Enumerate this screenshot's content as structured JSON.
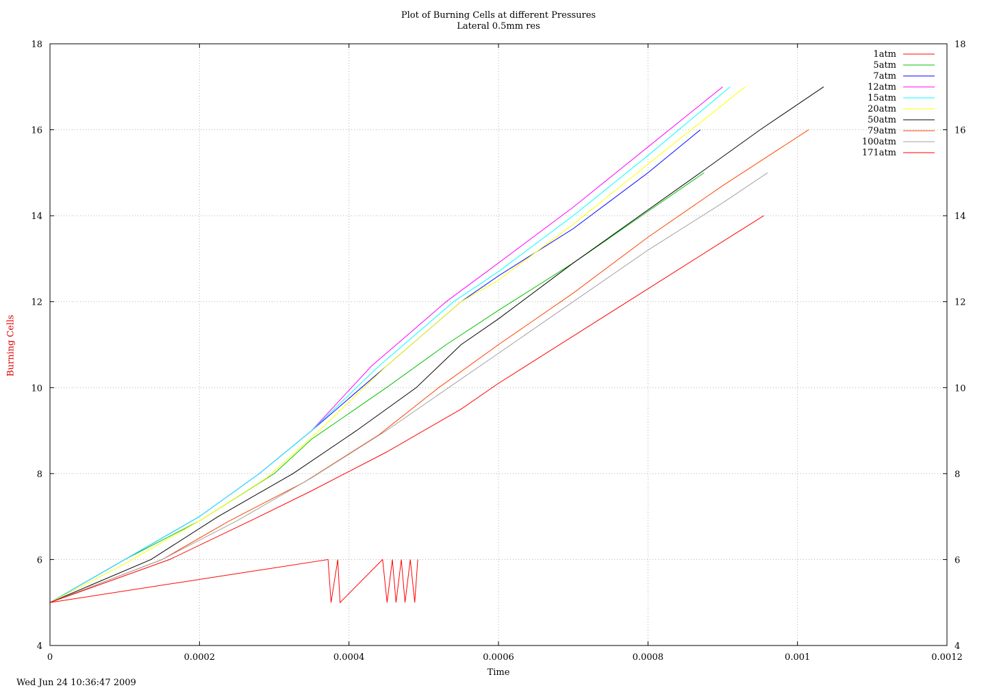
{
  "chart_data": {
    "type": "line",
    "title": "Plot of Burning Cells at different Pressures",
    "subtitle": "Lateral 0.5mm res",
    "xlabel": "Time",
    "ylabel": "Burning Cells",
    "xlim": [
      0,
      0.0012
    ],
    "ylim": [
      4,
      18
    ],
    "x_ticks": [
      "0",
      "0.0002",
      "0.0004",
      "0.0006",
      "0.0008",
      "0.001",
      "0.0012"
    ],
    "y_ticks": [
      "4",
      "6",
      "8",
      "10",
      "12",
      "14",
      "16",
      "18"
    ],
    "grid": true,
    "legend_position": "top-right",
    "series": [
      {
        "name": "1atm",
        "color": "#ff0000",
        "x": [
          0,
          0.000372,
          0.000376,
          0.000385,
          0.000388,
          0.000445,
          0.000451,
          0.000458,
          0.000463,
          0.00047,
          0.000475,
          0.000482,
          0.000488,
          0.000492
        ],
        "y": [
          5,
          6,
          5,
          6,
          5,
          6,
          5,
          6,
          5,
          6,
          5,
          6,
          5,
          6
        ]
      },
      {
        "name": "5atm",
        "color": "#00c000",
        "x": [
          0,
          0.0001,
          0.0002,
          0.0003,
          0.00035,
          0.00045,
          0.00053,
          0.0006,
          0.0007,
          0.0008,
          0.000875
        ],
        "y": [
          5,
          6,
          6.9,
          8,
          8.8,
          10,
          11,
          11.8,
          12.9,
          14.1,
          15
        ]
      },
      {
        "name": "7atm",
        "color": "#0000ff",
        "x": [
          0,
          0.0001,
          0.0002,
          0.00028,
          0.00035,
          0.00045,
          0.00055,
          0.0006,
          0.0007,
          0.0008,
          0.00087
        ],
        "y": [
          5,
          6,
          7,
          8,
          9,
          10.5,
          12,
          12.6,
          13.7,
          15,
          16
        ]
      },
      {
        "name": "12atm",
        "color": "#ff00ff",
        "x": [
          0,
          0.0001,
          0.0002,
          0.00028,
          0.00035,
          0.00043,
          0.00053,
          0.0006,
          0.0007,
          0.0008,
          0.0009
        ],
        "y": [
          5,
          6,
          7,
          8,
          9,
          10.5,
          12,
          12.9,
          14.2,
          15.6,
          17
        ]
      },
      {
        "name": "15atm",
        "color": "#00ffff",
        "x": [
          0,
          0.0001,
          0.0002,
          0.00028,
          0.00035,
          0.00044,
          0.00054,
          0.0006,
          0.0007,
          0.0008,
          0.00091
        ],
        "y": [
          5,
          6,
          7,
          8,
          9,
          10.5,
          12,
          12.7,
          14,
          15.4,
          17
        ]
      },
      {
        "name": "20atm",
        "color": "#ffff00",
        "x": [
          0,
          0.0001,
          0.0002,
          0.00029,
          0.00036,
          0.00045,
          0.00055,
          0.0006,
          0.0007,
          0.0008,
          0.00093
        ],
        "y": [
          5,
          5.9,
          6.9,
          7.9,
          9,
          10.5,
          12,
          12.5,
          13.8,
          15.2,
          17
        ]
      },
      {
        "name": "50atm",
        "color": "#000000",
        "x": [
          0,
          0.000135,
          0.000225,
          0.000325,
          0.00041,
          0.00049,
          0.00055,
          0.0006,
          0.0007,
          0.00087,
          0.00095,
          0.001035
        ],
        "y": [
          5,
          6,
          7,
          8,
          9,
          10,
          11,
          11.6,
          12.9,
          15,
          16,
          17
        ]
      },
      {
        "name": "79atm",
        "color": "#ff4000",
        "x": [
          0,
          0.00015,
          0.00024,
          0.00034,
          0.00044,
          0.00052,
          0.0006,
          0.0007,
          0.0008,
          0.0009,
          0.001015
        ],
        "y": [
          5,
          6,
          6.9,
          7.8,
          8.9,
          10,
          11,
          12.2,
          13.5,
          14.7,
          16
        ]
      },
      {
        "name": "100atm",
        "color": "#a0a0a0",
        "x": [
          0,
          0.00015,
          0.00025,
          0.00035,
          0.00045,
          0.00055,
          0.0006,
          0.0007,
          0.0008,
          0.0009,
          0.00096
        ],
        "y": [
          5,
          6,
          6.9,
          7.9,
          9,
          10.2,
          10.8,
          12,
          13.2,
          14.3,
          15
        ]
      },
      {
        "name": "171atm",
        "color": "#ff0000",
        "x": [
          0,
          0.00016,
          0.00028,
          0.00035,
          0.00045,
          0.00055,
          0.0006,
          0.0007,
          0.0008,
          0.0009,
          0.000955
        ],
        "y": [
          5,
          6,
          7,
          7.6,
          8.5,
          9.5,
          10.1,
          11.2,
          12.3,
          13.4,
          14
        ]
      }
    ]
  },
  "timestamp": "Wed Jun 24 10:36:47 2009"
}
